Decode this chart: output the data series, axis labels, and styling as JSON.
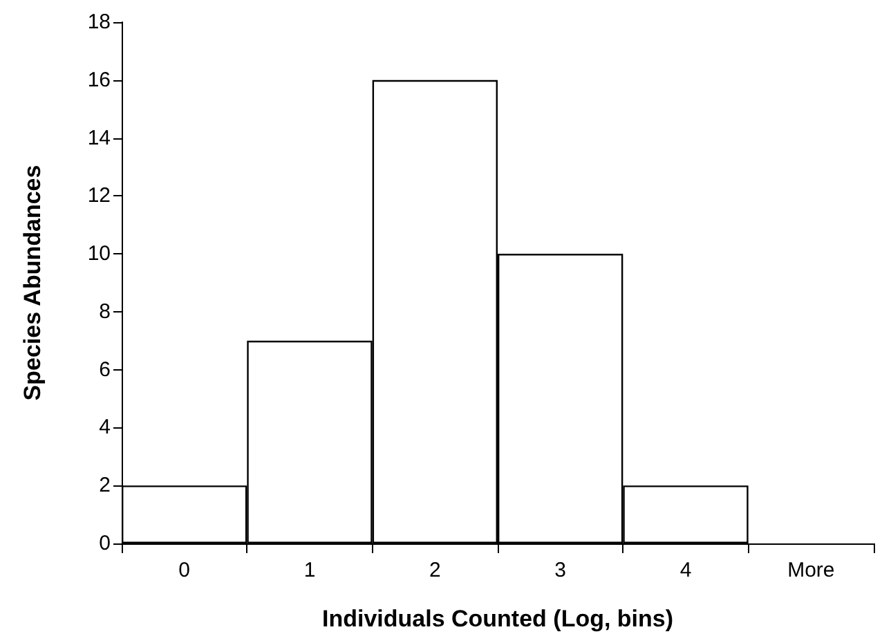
{
  "chart_data": {
    "type": "bar",
    "xlabel": "Individuals Counted (Log, bins)",
    "ylabel": "Species Abundances",
    "categories": [
      "0",
      "1",
      "2",
      "3",
      "4",
      "More"
    ],
    "values": [
      2,
      7,
      16,
      10,
      2,
      0
    ],
    "color": "#ffffff",
    "ylim": [
      0,
      18
    ],
    "yticks": [
      0,
      2,
      4,
      6,
      8,
      10,
      12,
      14,
      16,
      18
    ],
    "grid": false
  }
}
